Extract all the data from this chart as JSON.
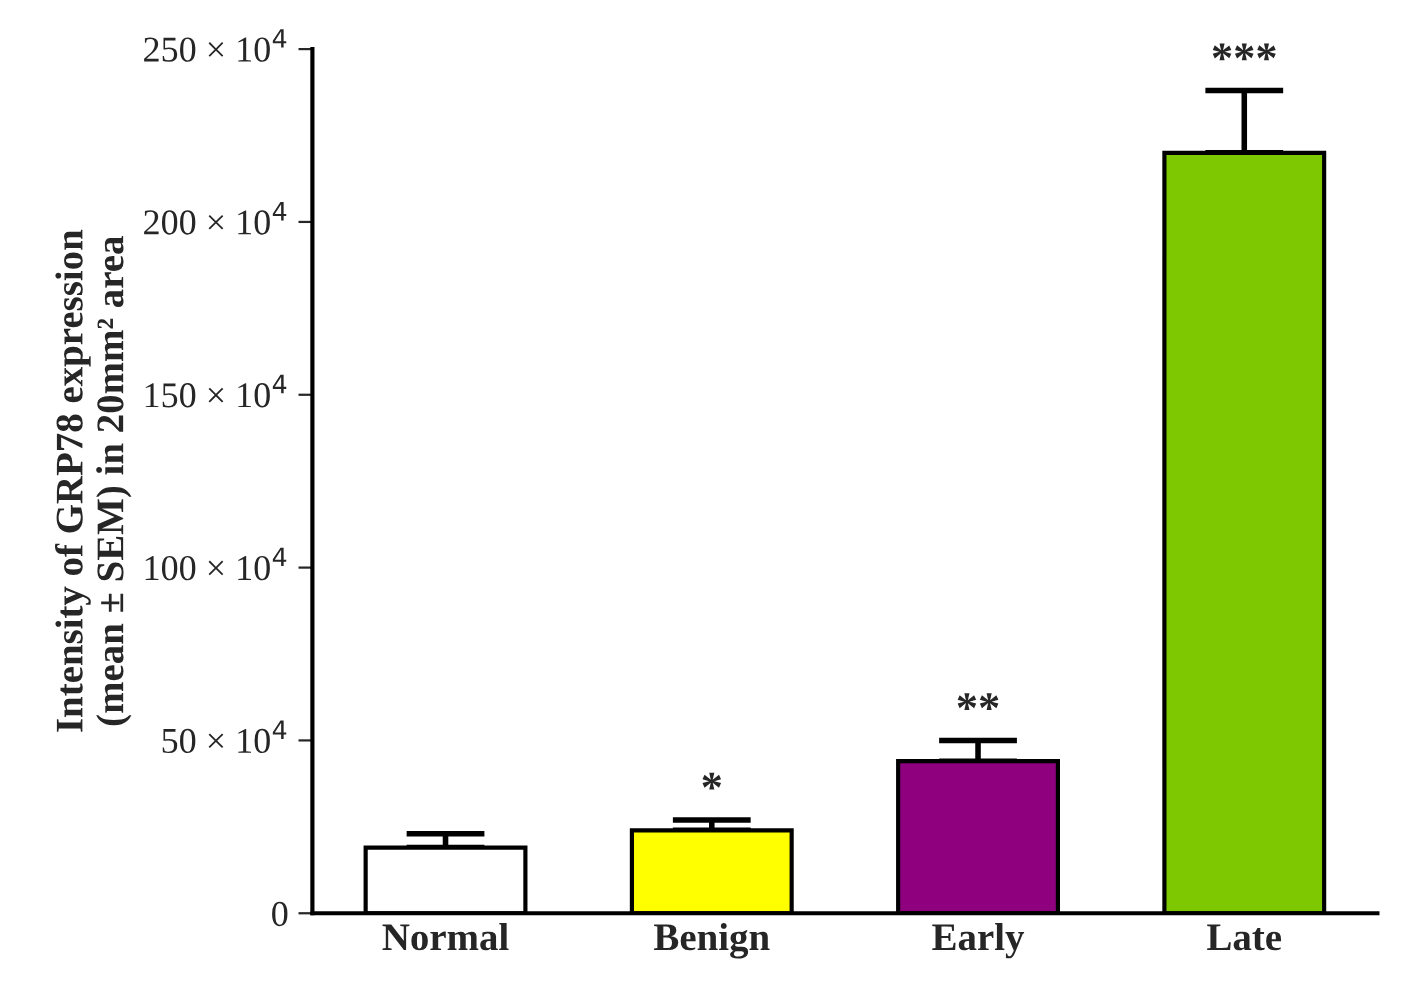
{
  "chart_data": {
    "type": "bar",
    "ylabel": "Intensity of GRP78 expression\n(mean ± SEM) in 20mm² area",
    "categories": [
      "Normal",
      "Benign",
      "Early",
      "Late"
    ],
    "values": [
      190000,
      240000,
      440000,
      2200000
    ],
    "colors": [
      "#ffffff",
      "#ffff00",
      "#8e007e",
      "#7dc800"
    ],
    "errors": [
      [
        190000,
        230000
      ],
      [
        240000,
        270000
      ],
      [
        440000,
        500000
      ],
      [
        2200000,
        2380000
      ]
    ],
    "ylim": [
      0,
      2500000
    ],
    "yticks": [
      0,
      {
        "value": 500000,
        "label": "50 × 10$^{4}$"
      },
      {
        "value": 1000000,
        "label": "100 × 10$^{4}$"
      },
      {
        "value": 1500000,
        "label": "150 × 10$^{4}$"
      },
      {
        "value": 2000000,
        "label": "200 × 10$^{4}$"
      },
      {
        "value": 2500000,
        "label": "250 × 10$^{4}$"
      }
    ],
    "annotations": [
      {
        "text": "*",
        "x": "Benign",
        "y": 270000
      },
      {
        "text": "**",
        "x": "Early",
        "y": 500000
      },
      {
        "text": "***",
        "x": "Late",
        "y": 2380000
      }
    ],
    "grid": false,
    "legend": false
  }
}
